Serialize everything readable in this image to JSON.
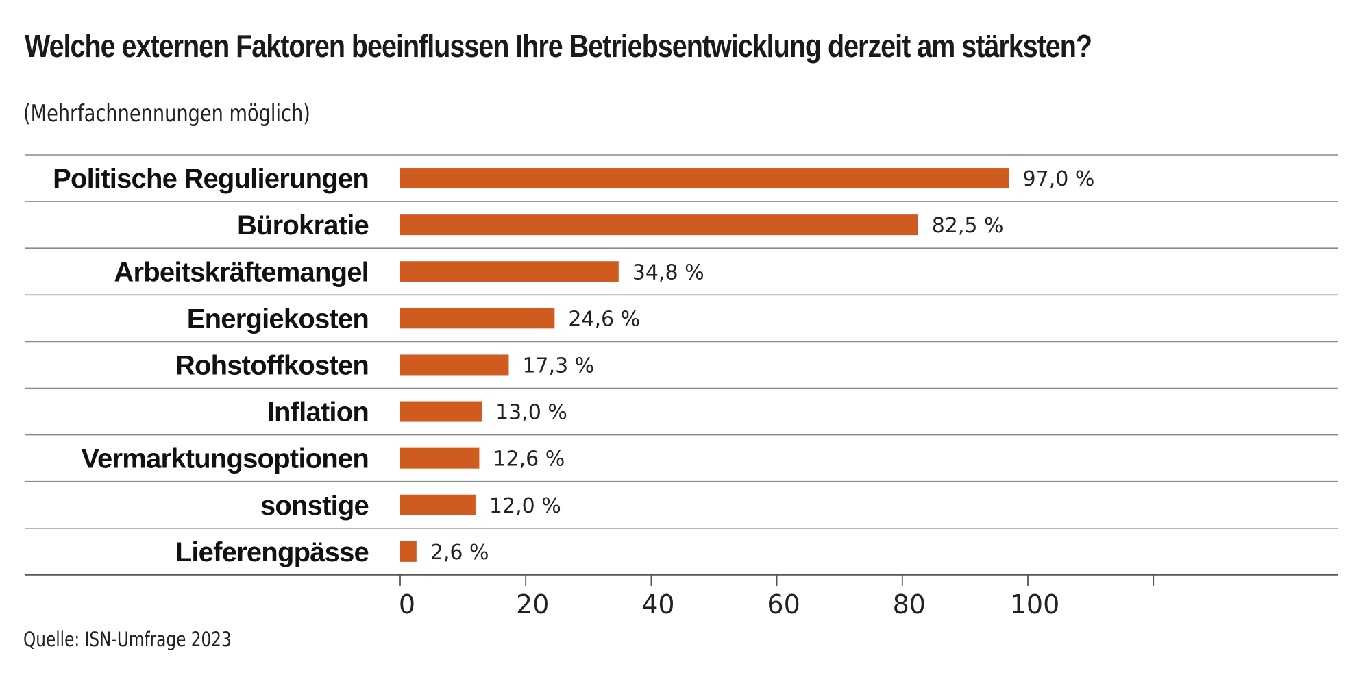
{
  "title": "Welche externen Faktoren beeinflussen Ihre Betriebsentwicklung derzeit am stärksten?",
  "subtitle": "(Mehrfachnennungen möglich)",
  "source": "Quelle: ISN-Umfrage 2023",
  "colors": {
    "bar": "#cf5b1e",
    "gridline": "#8a8a8a",
    "axis": "#555555"
  },
  "chart_data": {
    "type": "bar",
    "orientation": "horizontal",
    "categories": [
      "Politische Regulierungen",
      "Bürokratie",
      "Arbeitskräftemangel",
      "Energiekosten",
      "Rohstoffkosten",
      "Inflation",
      "Vermarktungsoptionen",
      "sonstige",
      "Lieferengpässe"
    ],
    "values": [
      97.0,
      82.5,
      34.8,
      24.6,
      17.3,
      13.0,
      12.6,
      12.0,
      2.6
    ],
    "value_labels": [
      "97,0 %",
      "82,5 %",
      "34,8 %",
      "24,6 %",
      "17,3 %",
      "13,0 %",
      "12,6 %",
      "12,0 %",
      "2,6 %"
    ],
    "xticks": [
      "0",
      "20",
      "40",
      "60",
      "80",
      "100"
    ],
    "xlim": [
      0,
      120
    ],
    "grid": false,
    "legend": "none"
  }
}
